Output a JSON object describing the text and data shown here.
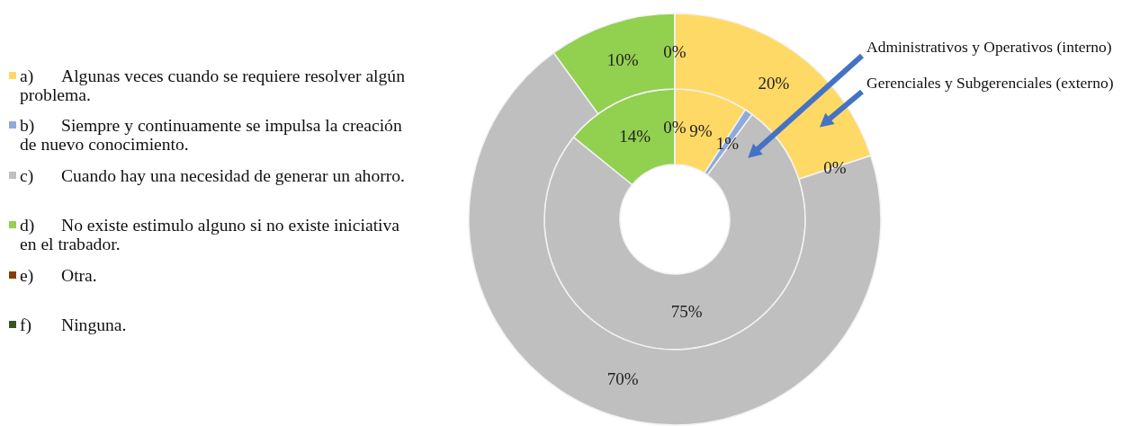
{
  "chart_data": {
    "type": "donut",
    "categories": [
      "a)\tAlgunas veces cuando se requiere resolver algún problema.",
      "b)\tSiempre y continuamente se impulsa la creación de nuevo conocimiento.",
      "c)\tCuando hay una necesidad de generar un ahorro.",
      "d)\tNo existe estimulo alguno si no existe iniciativa en el trabador.",
      "e)\tOtra.",
      "f)\tNinguna."
    ],
    "colors": [
      "#ffd966",
      "#8faadc",
      "#bfbfbf",
      "#92d050",
      "#843c0c",
      "#375623"
    ],
    "series": [
      {
        "name": "Administrativos y Operativos (interno)",
        "values": [
          9,
          1,
          75,
          14,
          0,
          0
        ],
        "value_labels": [
          "9%",
          "1%",
          "75%",
          "14%",
          "0%",
          null
        ]
      },
      {
        "name": "Gerenciales y Subgerenciales (externo)",
        "values": [
          20,
          0,
          70,
          10,
          0,
          0
        ],
        "value_labels": [
          "20%",
          "0%",
          "70%",
          "10%",
          "0%",
          null
        ]
      }
    ],
    "legend": "left"
  }
}
